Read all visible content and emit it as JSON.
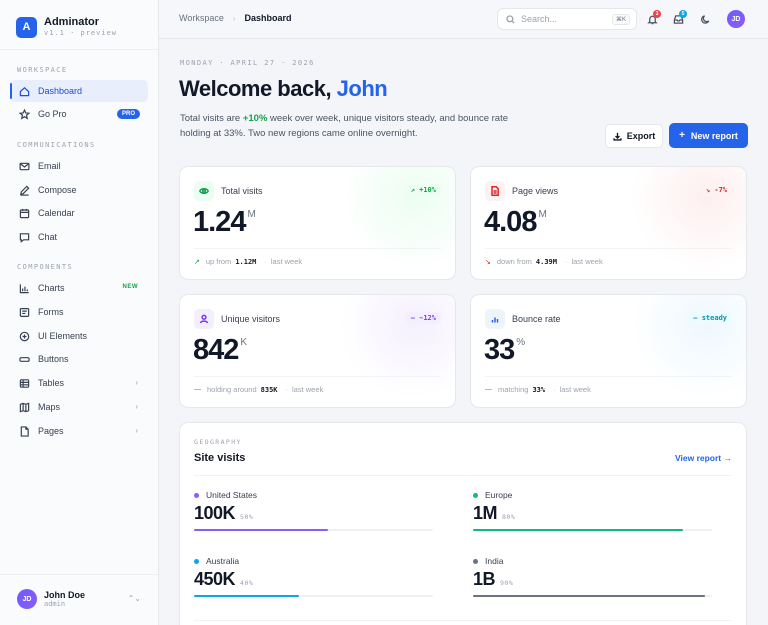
{
  "brand": {
    "logo_letter": "A",
    "name": "Adminator",
    "version": "v1.1 · preview"
  },
  "sidebar": {
    "sections": [
      {
        "label": "WORKSPACE"
      },
      {
        "label": "COMMUNICATIONS"
      },
      {
        "label": "COMPONENTS"
      }
    ],
    "items": [
      {
        "label": "Dashboard",
        "icon": "home-icon"
      },
      {
        "label": "Go Pro",
        "icon": "star-icon",
        "badge": "PRO"
      },
      {
        "label": "Email",
        "icon": "mail-icon"
      },
      {
        "label": "Compose",
        "icon": "pen-icon"
      },
      {
        "label": "Calendar",
        "icon": "calendar-icon"
      },
      {
        "label": "Chat",
        "icon": "chat-icon"
      },
      {
        "label": "Charts",
        "icon": "bar-chart-icon",
        "badge": "NEW"
      },
      {
        "label": "Forms",
        "icon": "form-icon"
      },
      {
        "label": "UI Elements",
        "icon": "plus-circle-icon"
      },
      {
        "label": "Buttons",
        "icon": "button-icon"
      },
      {
        "label": "Tables",
        "icon": "table-icon",
        "chevron": "›"
      },
      {
        "label": "Maps",
        "icon": "map-icon",
        "chevron": "›"
      },
      {
        "label": "Pages",
        "icon": "file-icon",
        "chevron": "›"
      }
    ],
    "user": {
      "initials": "JD",
      "name": "John Doe",
      "role": "admin",
      "chevron": "⌃⌄"
    }
  },
  "header": {
    "breadcrumb": [
      "Workspace",
      "Dashboard"
    ],
    "breadcrumb_sep": "›",
    "search_placeholder": "Search...",
    "search_kbd": "⌘K",
    "notifications_count": "3",
    "inbox_count": "5",
    "avatar_initials": "JD"
  },
  "main": {
    "date": "MONDAY · APRIL 27 · 2026",
    "welcome_prefix": "Welcome back, ",
    "welcome_name": "John",
    "summary_pre": "Total visits are ",
    "summary_up": "+10%",
    "summary_post": " week over week, unique visitors steady, and bounce rate holding at 33%. Two new regions came online overnight.",
    "export_label": "Export",
    "new_report_label": "New report",
    "new_report_icon": "+"
  },
  "cards": [
    {
      "title": "Total visits",
      "delta": "↗ +10%",
      "value": "1.24",
      "unit": "M",
      "foot_arrow": "↗",
      "foot_pre": "up from",
      "foot_val": "1.12M",
      "foot_post": "last week",
      "accent": "#16a34a",
      "icon": "eye-icon"
    },
    {
      "title": "Page views",
      "delta": "↘ -7%",
      "value": "4.08",
      "unit": "M",
      "foot_arrow": "↘",
      "foot_pre": "down from",
      "foot_val": "4.39M",
      "foot_post": "last week",
      "accent": "#dc2626",
      "icon": "document-icon"
    },
    {
      "title": "Unique visitors",
      "delta": "— ~12%",
      "value": "842",
      "unit": "K",
      "foot_arrow": "—",
      "foot_pre": "holding around",
      "foot_val": "835K",
      "foot_post": "last week",
      "accent": "#7c3aed",
      "icon": "user-icon"
    },
    {
      "title": "Bounce rate",
      "delta": "— steady",
      "value": "33",
      "unit": "%",
      "foot_arrow": "—",
      "foot_pre": "matching",
      "foot_val": "33%",
      "foot_post": "last week",
      "accent": "#0891b2",
      "icon": "bars-icon"
    }
  ],
  "geography": {
    "label": "GEOGRAPHY",
    "title": "Site visits",
    "link": "View report →",
    "regions": [
      {
        "name": "United States",
        "value": "100K",
        "pct": "50%",
        "fill": 0.56,
        "color": "#8b5cf6"
      },
      {
        "name": "Europe",
        "value": "1M",
        "pct": "80%",
        "fill": 0.88,
        "color": "#10b981"
      },
      {
        "name": "Australia",
        "value": "450K",
        "pct": "40%",
        "fill": 0.44,
        "color": "#0ea5e9"
      },
      {
        "name": "India",
        "value": "1B",
        "pct": "90%",
        "fill": 0.97,
        "color": "#6b7280"
      }
    ]
  }
}
